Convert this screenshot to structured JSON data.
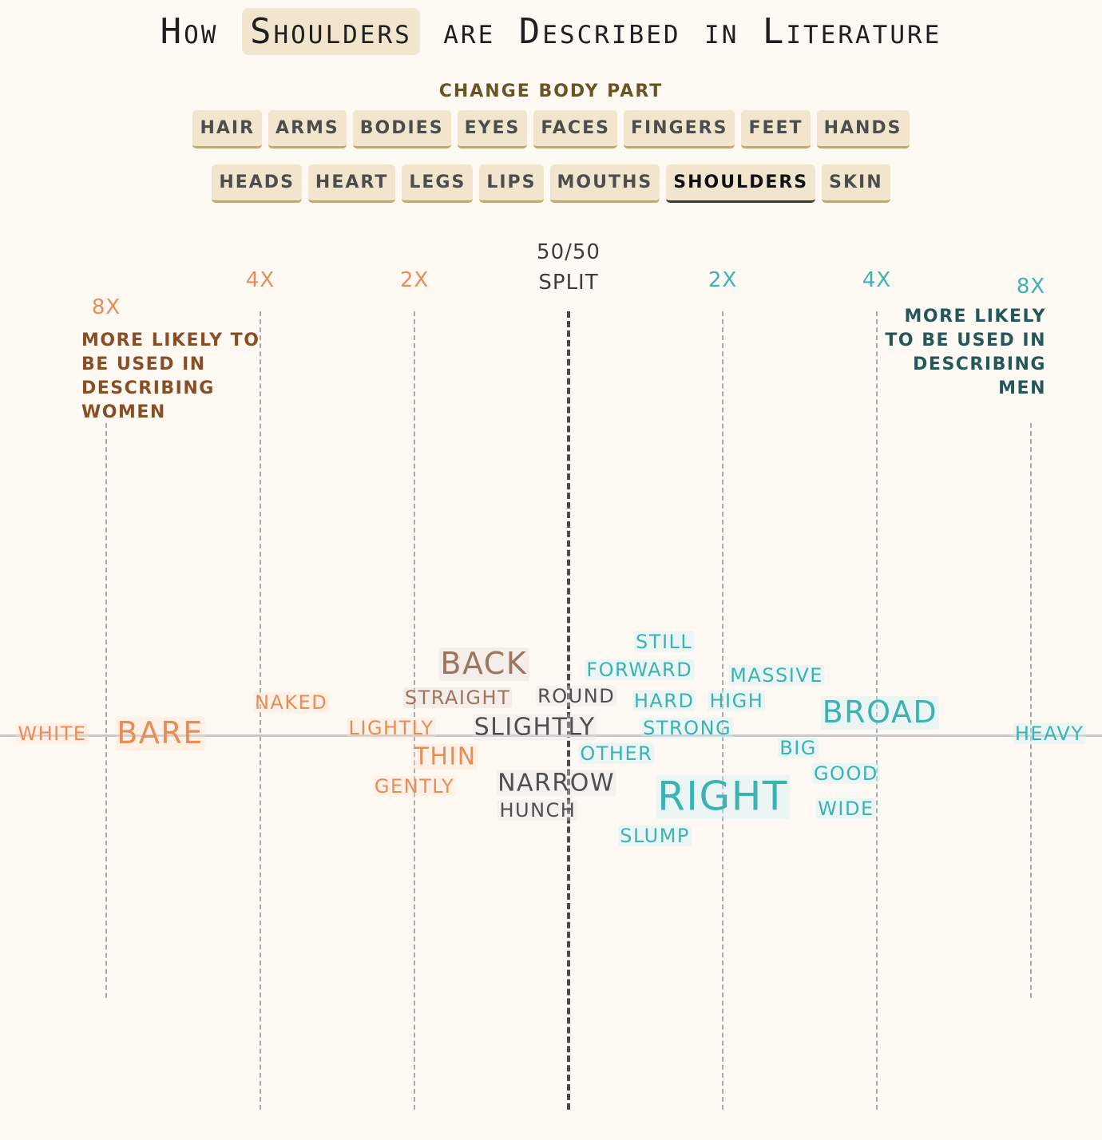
{
  "title": {
    "before": "How ",
    "highlight": "Shoulders",
    "after": " are Described in Literature"
  },
  "controls": {
    "label": "CHANGE BODY PART",
    "row1": [
      "HAIR",
      "ARMS",
      "BODIES",
      "EYES",
      "FACES",
      "FINGERS",
      "FEET",
      "HANDS"
    ],
    "row2": [
      "HEADS",
      "HEART",
      "LEGS",
      "LIPS",
      "MOUTHS",
      "SHOULDERS",
      "SKIN"
    ],
    "selected": "SHOULDERS"
  },
  "colors": {
    "women": "#e88d57",
    "women_dark": "#8a4e24",
    "neutral": "#4f4f4f",
    "men": "#3bb3b3",
    "men_dark": "#23585a",
    "title_highlight": "#f1e6cd",
    "tab_underline": "#c9a65a"
  },
  "axis": {
    "split_label_line1": "50/50",
    "split_label_line2": "SPLIT",
    "women_caption": "MORE LIKELY TO BE USED IN DESCRIBING WOMEN",
    "men_caption": "MORE LIKELY TO BE USED IN DESCRIBING MEN"
  },
  "chart_data": {
    "type": "scatter",
    "x_scale": "log2 ratio (negative = women, positive = men)",
    "xlim": [
      -3,
      3
    ],
    "ticks": [
      {
        "value": -3,
        "label": "8X",
        "side": "women"
      },
      {
        "value": -2,
        "label": "4X",
        "side": "women"
      },
      {
        "value": -1,
        "label": "2X",
        "side": "women"
      },
      {
        "value": 0,
        "label": "",
        "side": "center"
      },
      {
        "value": 1,
        "label": "2X",
        "side": "men"
      },
      {
        "value": 2,
        "label": "4X",
        "side": "men"
      },
      {
        "value": 3,
        "label": "8X",
        "side": "men"
      }
    ],
    "words": [
      {
        "word": "WHITE",
        "x": -3.35,
        "size": 2,
        "side": "women"
      },
      {
        "word": "BARE",
        "x": -2.65,
        "size": 5,
        "side": "women"
      },
      {
        "word": "NAKED",
        "x": -1.8,
        "size": 2,
        "side": "women"
      },
      {
        "word": "LIGHTLY",
        "x": -1.15,
        "size": 2,
        "side": "women"
      },
      {
        "word": "THIN",
        "x": -0.8,
        "size": 3,
        "side": "women"
      },
      {
        "word": "GENTLY",
        "x": -1.0,
        "size": 2,
        "side": "women"
      },
      {
        "word": "BACK",
        "x": -0.55,
        "size": 5,
        "side": "neutral_women"
      },
      {
        "word": "STRAIGHT",
        "x": -0.72,
        "size": 2,
        "side": "neutral_women"
      },
      {
        "word": "ROUND",
        "x": 0.05,
        "size": 2,
        "side": "neutral"
      },
      {
        "word": "SLIGHTLY",
        "x": -0.22,
        "size": 3,
        "side": "neutral"
      },
      {
        "word": "NARROW",
        "x": -0.08,
        "size": 3,
        "side": "neutral"
      },
      {
        "word": "HUNCH",
        "x": -0.2,
        "size": 2,
        "side": "neutral"
      },
      {
        "word": "STILL",
        "x": 0.62,
        "size": 2,
        "side": "men"
      },
      {
        "word": "FORWARD",
        "x": 0.46,
        "size": 2,
        "side": "men"
      },
      {
        "word": "HARD",
        "x": 0.62,
        "size": 2,
        "side": "men"
      },
      {
        "word": "HIGH",
        "x": 1.09,
        "size": 2,
        "side": "men"
      },
      {
        "word": "MASSIVE",
        "x": 1.35,
        "size": 2,
        "side": "men"
      },
      {
        "word": "STRONG",
        "x": 0.77,
        "size": 2,
        "side": "men"
      },
      {
        "word": "OTHER",
        "x": 0.31,
        "size": 2,
        "side": "men"
      },
      {
        "word": "BROAD",
        "x": 2.02,
        "size": 5,
        "side": "men"
      },
      {
        "word": "BIG",
        "x": 1.49,
        "size": 2,
        "side": "men"
      },
      {
        "word": "GOOD",
        "x": 1.8,
        "size": 2,
        "side": "men"
      },
      {
        "word": "RIGHT",
        "x": 1.0,
        "size": 6,
        "side": "men"
      },
      {
        "word": "WIDE",
        "x": 1.8,
        "size": 2,
        "side": "men"
      },
      {
        "word": "SLUMP",
        "x": 0.56,
        "size": 2,
        "side": "men"
      },
      {
        "word": "HEAVY",
        "x": 3.12,
        "size": 2,
        "side": "men"
      }
    ]
  }
}
